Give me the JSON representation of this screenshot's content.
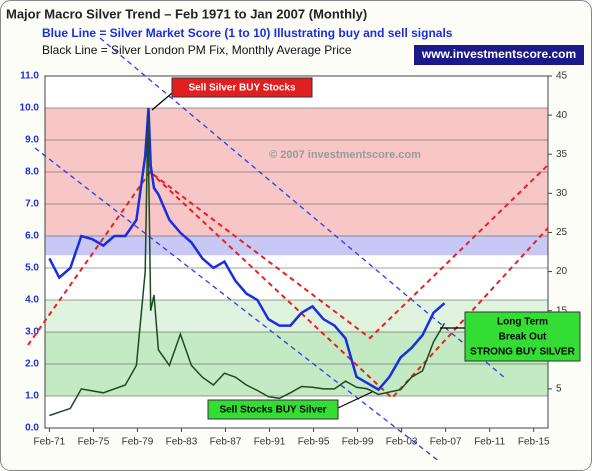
{
  "chart_data": {
    "type": "line",
    "title": "Major Macro Silver Trend – Feb 1971 to Jan 2007 (Monthly)",
    "subtitle": "Blue Line = Silver Market Score (1 to 10) Illustrating buy and sell signals",
    "subtitle2": "Black Line = Silver London PM Fix, Monthly Average Price",
    "website": "www.investmentscore.com",
    "watermark": "© 2007 investmentscore.com",
    "annotations": [
      {
        "lines": [
          "Sell Silver BUY Stocks"
        ],
        "color": "#e02020"
      },
      {
        "lines": [
          "Sell Stocks BUY Silver"
        ],
        "color": "#33dd33"
      },
      {
        "lines": [
          "Long Term",
          "Break Out",
          "STRONG BUY SILVER"
        ],
        "color": "#33dd33"
      }
    ],
    "xlim": [
      1970.7,
      2016.4
    ],
    "xticks": [
      {
        "value": 1971.1,
        "label": "Feb-71"
      },
      {
        "value": 1975.1,
        "label": "Feb-75"
      },
      {
        "value": 1979.1,
        "label": "Feb-79"
      },
      {
        "value": 1983.1,
        "label": "Feb-83"
      },
      {
        "value": 1987.1,
        "label": "Feb-87"
      },
      {
        "value": 1991.1,
        "label": "Feb-91"
      },
      {
        "value": 1995.1,
        "label": "Feb-95"
      },
      {
        "value": 1999.1,
        "label": "Feb-99"
      },
      {
        "value": 2003.1,
        "label": "Feb-03"
      },
      {
        "value": 2007.1,
        "label": "Feb-07"
      },
      {
        "value": 2011.1,
        "label": "Feb-11"
      },
      {
        "value": 2015.1,
        "label": "Feb-15"
      }
    ],
    "ylim": [
      0,
      11
    ],
    "yticks": [
      {
        "value": 0,
        "label": "0.0"
      },
      {
        "value": 1,
        "label": "1.0"
      },
      {
        "value": 2,
        "label": "2.0"
      },
      {
        "value": 3,
        "label": "3.0"
      },
      {
        "value": 4,
        "label": "4.0"
      },
      {
        "value": 5,
        "label": "5.0"
      },
      {
        "value": 6,
        "label": "6.0"
      },
      {
        "value": 7,
        "label": "7.0"
      },
      {
        "value": 8,
        "label": "8.0"
      },
      {
        "value": 9,
        "label": "9.0"
      },
      {
        "value": 10,
        "label": "10.0"
      },
      {
        "value": 11,
        "label": "11.0"
      }
    ],
    "y2lim": [
      0,
      45
    ],
    "y2ticks": [
      5,
      10,
      15,
      20,
      25,
      30,
      35,
      40,
      45
    ],
    "grid": true,
    "bands": [
      {
        "from": 6,
        "to": 10,
        "color": "#f7c6c6"
      },
      {
        "from": 5.4,
        "to": 6,
        "color": "#c8c8f4"
      },
      {
        "from": 3,
        "to": 4,
        "color": "#dff3df"
      },
      {
        "from": 1,
        "to": 3,
        "color": "#c4eac4"
      }
    ],
    "series": [
      {
        "name": "Silver Market Score",
        "color": "#1a2ee0",
        "axis": "y",
        "x": [
          1971.1,
          1972,
          1973,
          1974,
          1975,
          1976,
          1977,
          1978,
          1979,
          1979.8,
          1980.1,
          1980.3,
          1980.6,
          1981,
          1982,
          1983,
          1984,
          1985,
          1986,
          1987,
          1988,
          1989,
          1990,
          1991,
          1992,
          1993,
          1994,
          1995,
          1996,
          1997,
          1998,
          1999,
          2000,
          2001,
          2002,
          2003,
          2004,
          2005,
          2006,
          2007
        ],
        "values": [
          5.3,
          4.7,
          5.0,
          6.0,
          5.9,
          5.7,
          6.0,
          6.0,
          6.5,
          8.5,
          10.0,
          8.2,
          7.5,
          7.3,
          6.5,
          6.1,
          5.8,
          5.3,
          5.0,
          5.2,
          4.6,
          4.2,
          4.0,
          3.4,
          3.2,
          3.2,
          3.6,
          3.8,
          3.4,
          3.2,
          2.8,
          1.6,
          1.4,
          1.2,
          1.6,
          2.2,
          2.5,
          2.9,
          3.6,
          3.9
        ]
      },
      {
        "name": "Silver London PM Fix",
        "color": "#1e4a1e",
        "axis": "y2",
        "x": [
          1971.1,
          1973,
          1974,
          1976,
          1978,
          1979,
          1979.8,
          1980.05,
          1980.3,
          1980.6,
          1981,
          1982,
          1983,
          1984,
          1985,
          1986,
          1987,
          1988,
          1989,
          1990,
          1991,
          1992,
          1993,
          1994,
          1995,
          1996,
          1997,
          1998,
          1999,
          2000,
          2001,
          2002,
          2003,
          2004,
          2005,
          2006,
          2007
        ],
        "values": [
          1.6,
          2.5,
          5,
          4.5,
          5.5,
          8,
          20,
          40,
          15,
          17,
          10,
          8,
          12,
          8,
          6.5,
          5.5,
          7,
          6.5,
          5.5,
          4.8,
          4,
          3.8,
          4.5,
          5.3,
          5.2,
          5.0,
          5,
          6,
          5.2,
          5,
          4.3,
          4.6,
          4.9,
          6.5,
          7.3,
          11,
          13.4
        ]
      }
    ]
  }
}
